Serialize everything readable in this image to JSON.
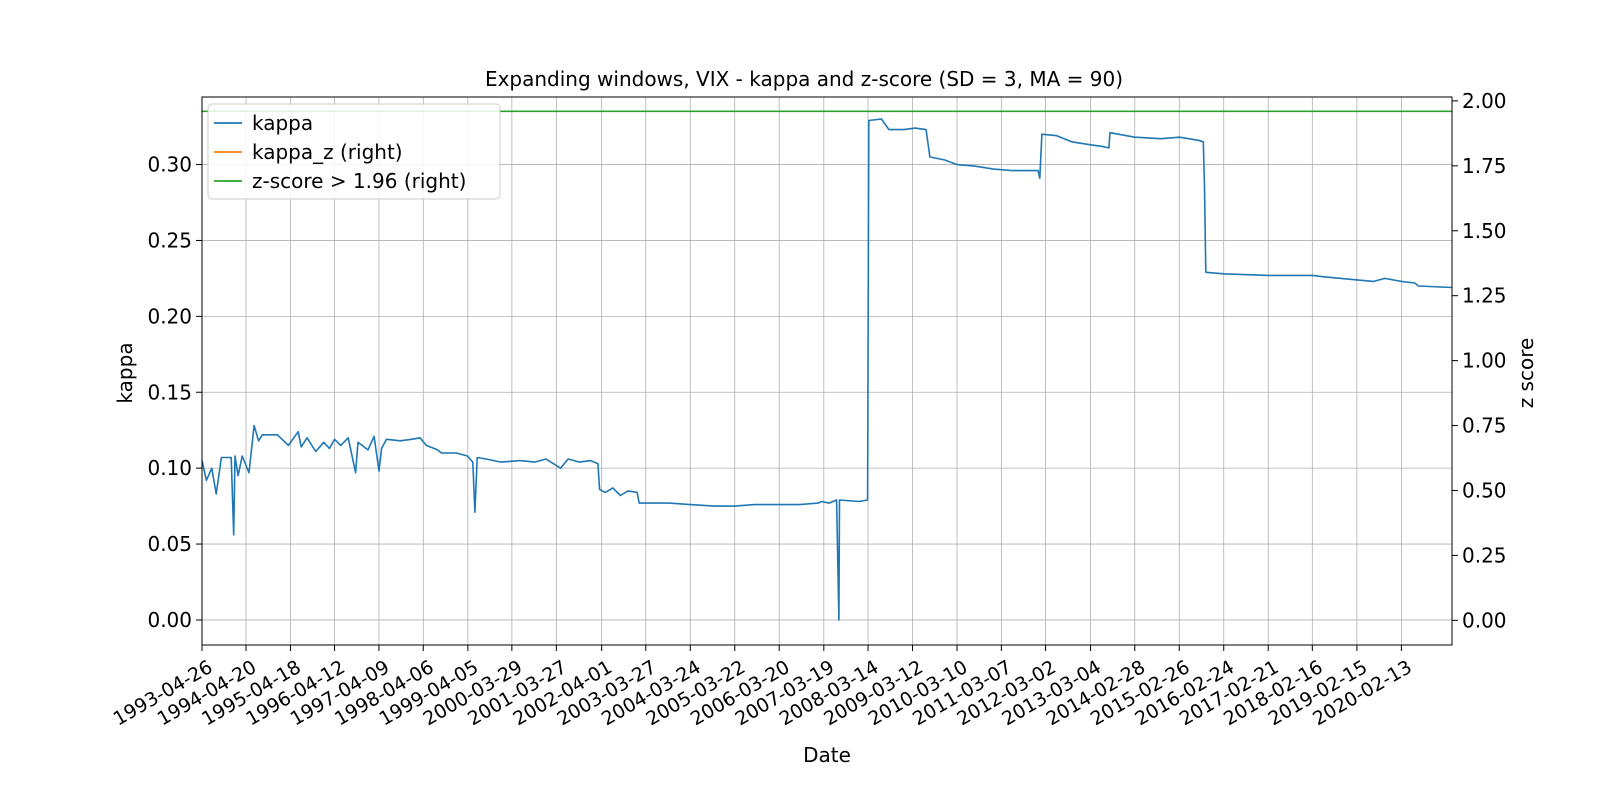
{
  "chart_data": {
    "type": "line",
    "title": "Expanding windows, VIX - kappa and z-score (SD = 3, MA = 90)",
    "xlabel": "Date",
    "ylabel": "kappa",
    "y2label": "z score",
    "xlim": [
      "1993-04-26",
      "2021-04-01"
    ],
    "ylim": [
      -0.0165,
      0.3445
    ],
    "y2lim": [
      -0.095,
      2.015
    ],
    "yticks": [
      "0.00",
      "0.05",
      "0.10",
      "0.15",
      "0.20",
      "0.25",
      "0.30"
    ],
    "y2ticks": [
      "0.00",
      "0.25",
      "0.50",
      "0.75",
      "1.00",
      "1.25",
      "1.50",
      "1.75",
      "2.00"
    ],
    "xticks": [
      "1993-04-26",
      "1994-04-20",
      "1995-04-18",
      "1996-04-12",
      "1997-04-09",
      "1998-04-06",
      "1999-04-05",
      "2000-03-29",
      "2001-03-27",
      "2002-04-01",
      "2003-03-27",
      "2004-03-24",
      "2005-03-22",
      "2006-03-20",
      "2007-03-19",
      "2008-03-14",
      "2009-03-12",
      "2010-03-10",
      "2011-03-07",
      "2012-03-02",
      "2013-03-04",
      "2014-02-28",
      "2015-02-26",
      "2016-02-24",
      "2017-02-21",
      "2018-02-16",
      "2019-02-15",
      "2020-02-13"
    ],
    "grid": true,
    "legend_position": "top-left",
    "series": [
      {
        "name": "kappa",
        "axis": "left",
        "color": "#1f77b4",
        "points": [
          [
            "1993-04-26",
            0.105
          ],
          [
            "1993-06-01",
            0.092
          ],
          [
            "1993-07-15",
            0.1
          ],
          [
            "1993-08-20",
            0.083
          ],
          [
            "1993-10-01",
            0.107
          ],
          [
            "1993-12-20",
            0.107
          ],
          [
            "1994-01-10",
            0.056
          ],
          [
            "1994-01-20",
            0.108
          ],
          [
            "1994-02-15",
            0.095
          ],
          [
            "1994-03-20",
            0.108
          ],
          [
            "1994-05-15",
            0.097
          ],
          [
            "1994-06-25",
            0.128
          ],
          [
            "1994-08-01",
            0.118
          ],
          [
            "1994-09-01",
            0.122
          ],
          [
            "1995-01-01",
            0.122
          ],
          [
            "1995-04-01",
            0.115
          ],
          [
            "1995-06-20",
            0.124
          ],
          [
            "1995-07-15",
            0.114
          ],
          [
            "1995-09-01",
            0.12
          ],
          [
            "1995-11-10",
            0.111
          ],
          [
            "1996-01-15",
            0.117
          ],
          [
            "1996-03-01",
            0.113
          ],
          [
            "1996-04-12",
            0.119
          ],
          [
            "1996-06-01",
            0.115
          ],
          [
            "1996-08-01",
            0.12
          ],
          [
            "1996-10-01",
            0.097
          ],
          [
            "1996-10-20",
            0.117
          ],
          [
            "1997-01-10",
            0.112
          ],
          [
            "1997-03-01",
            0.121
          ],
          [
            "1997-04-10",
            0.098
          ],
          [
            "1997-05-01",
            0.113
          ],
          [
            "1997-06-10",
            0.119
          ],
          [
            "1997-10-01",
            0.118
          ],
          [
            "1998-01-01",
            0.119
          ],
          [
            "1998-03-10",
            0.12
          ],
          [
            "1998-05-01",
            0.115
          ],
          [
            "1998-08-01",
            0.112
          ],
          [
            "1998-09-01",
            0.11
          ],
          [
            "1999-01-01",
            0.11
          ],
          [
            "1999-04-01",
            0.108
          ],
          [
            "1999-05-15",
            0.104
          ],
          [
            "1999-06-01",
            0.071
          ],
          [
            "1999-06-20",
            0.107
          ],
          [
            "1999-09-01",
            0.106
          ],
          [
            "2000-01-01",
            0.104
          ],
          [
            "2000-06-01",
            0.105
          ],
          [
            "2000-10-01",
            0.104
          ],
          [
            "2001-01-01",
            0.106
          ],
          [
            "2001-03-01",
            0.103
          ],
          [
            "2001-05-01",
            0.1
          ],
          [
            "2001-07-01",
            0.106
          ],
          [
            "2001-10-01",
            0.104
          ],
          [
            "2002-01-01",
            0.105
          ],
          [
            "2002-03-01",
            0.103
          ],
          [
            "2002-03-15",
            0.086
          ],
          [
            "2002-05-01",
            0.084
          ],
          [
            "2002-07-01",
            0.087
          ],
          [
            "2002-09-01",
            0.082
          ],
          [
            "2002-11-01",
            0.085
          ],
          [
            "2003-01-15",
            0.084
          ],
          [
            "2003-02-01",
            0.077
          ],
          [
            "2003-04-01",
            0.077
          ],
          [
            "2003-10-01",
            0.077
          ],
          [
            "2004-03-24",
            0.076
          ],
          [
            "2004-10-01",
            0.075
          ],
          [
            "2005-03-22",
            0.075
          ],
          [
            "2005-09-01",
            0.076
          ],
          [
            "2006-03-20",
            0.076
          ],
          [
            "2006-09-01",
            0.076
          ],
          [
            "2007-02-01",
            0.077
          ],
          [
            "2007-03-01",
            0.078
          ],
          [
            "2007-05-01",
            0.077
          ],
          [
            "2007-07-01",
            0.079
          ],
          [
            "2007-07-20",
            0.0
          ],
          [
            "2007-07-25",
            0.079
          ],
          [
            "2008-01-01",
            0.078
          ],
          [
            "2008-03-10",
            0.079
          ],
          [
            "2008-03-20",
            0.329
          ],
          [
            "2008-07-01",
            0.33
          ],
          [
            "2008-09-01",
            0.323
          ],
          [
            "2009-01-01",
            0.323
          ],
          [
            "2009-04-01",
            0.324
          ],
          [
            "2009-07-01",
            0.323
          ],
          [
            "2009-08-01",
            0.305
          ],
          [
            "2009-12-01",
            0.303
          ],
          [
            "2010-03-10",
            0.3
          ],
          [
            "2010-08-01",
            0.299
          ],
          [
            "2011-01-01",
            0.297
          ],
          [
            "2011-06-01",
            0.296
          ],
          [
            "2012-01-01",
            0.296
          ],
          [
            "2012-01-15",
            0.291
          ],
          [
            "2012-02-01",
            0.32
          ],
          [
            "2012-06-01",
            0.319
          ],
          [
            "2012-10-01",
            0.315
          ],
          [
            "2013-03-04",
            0.313
          ],
          [
            "2013-06-01",
            0.312
          ],
          [
            "2013-08-01",
            0.311
          ],
          [
            "2013-08-10",
            0.321
          ],
          [
            "2014-02-28",
            0.318
          ],
          [
            "2014-10-01",
            0.317
          ],
          [
            "2015-03-01",
            0.318
          ],
          [
            "2015-08-01",
            0.316
          ],
          [
            "2015-09-10",
            0.315
          ],
          [
            "2015-09-20",
            0.285
          ],
          [
            "2015-10-01",
            0.229
          ],
          [
            "2016-02-24",
            0.228
          ],
          [
            "2017-02-21",
            0.227
          ],
          [
            "2018-02-16",
            0.227
          ],
          [
            "2018-06-01",
            0.226
          ],
          [
            "2019-02-15",
            0.224
          ],
          [
            "2019-07-01",
            0.223
          ],
          [
            "2019-10-01",
            0.225
          ],
          [
            "2020-02-13",
            0.223
          ],
          [
            "2020-06-01",
            0.222
          ],
          [
            "2020-07-01",
            0.22
          ],
          [
            "2021-04-01",
            0.219
          ]
        ]
      },
      {
        "name": "kappa_z (right)",
        "axis": "right",
        "color": "#ff7f0e",
        "points": []
      },
      {
        "name": "z-score > 1.96 (right)",
        "axis": "right",
        "color": "#2ca02c",
        "constant": 1.96
      }
    ]
  }
}
